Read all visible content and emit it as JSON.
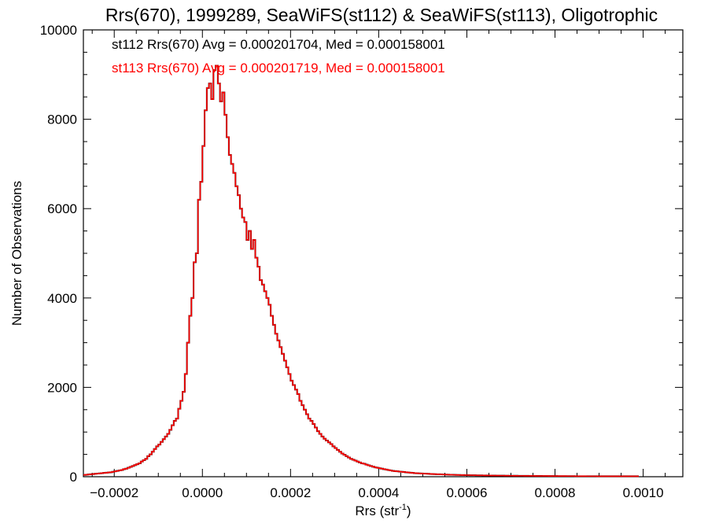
{
  "chart_data": {
    "type": "histogram-step",
    "title": "Rrs(670), 1999289, SeaWiFS(st112) & SeaWiFS(st113), Oligotrophic",
    "xlabel": {
      "base": "Rrs (str",
      "sup": "-1",
      "end": ")"
    },
    "ylabel": "Number of Observations",
    "xlim": [
      -0.00027,
      0.00109
    ],
    "ylim": [
      0,
      10000
    ],
    "xticks": [
      {
        "v": -0.0002,
        "label": "-0.0002"
      },
      {
        "v": 0.0,
        "label": "0.0000"
      },
      {
        "v": 0.0002,
        "label": "0.0002"
      },
      {
        "v": 0.0004,
        "label": "0.0004"
      },
      {
        "v": 0.0006,
        "label": "0.0006"
      },
      {
        "v": 0.0008,
        "label": "0.0008"
      },
      {
        "v": 0.001,
        "label": "0.0010"
      }
    ],
    "yticks": [
      {
        "v": 0,
        "label": "0"
      },
      {
        "v": 2000,
        "label": "2000"
      },
      {
        "v": 4000,
        "label": "4000"
      },
      {
        "v": 6000,
        "label": "6000"
      },
      {
        "v": 8000,
        "label": "8000"
      },
      {
        "v": 10000,
        "label": "10000"
      }
    ],
    "annotations": [
      {
        "text": "st112 Rrs(670) Avg = 0.000201704, Med = 0.000158001",
        "color": "#000000"
      },
      {
        "text": "st113 Rrs(670) Avg = 0.000201719, Med = 0.000158001",
        "color": "#ff0000"
      }
    ],
    "bins": {
      "start": -0.00027,
      "width": 5e-06,
      "counts": [
        40,
        45,
        50,
        55,
        60,
        65,
        70,
        75,
        80,
        85,
        90,
        95,
        100,
        110,
        120,
        130,
        140,
        150,
        170,
        180,
        200,
        220,
        240,
        260,
        280,
        300,
        340,
        370,
        400,
        460,
        500,
        560,
        620,
        680,
        720,
        780,
        840,
        900,
        960,
        1050,
        1150,
        1250,
        1300,
        1520,
        1700,
        1900,
        2300,
        3000,
        3600,
        4000,
        4800,
        5000,
        6200,
        6600,
        7400,
        8200,
        8700,
        8800,
        8450,
        9100,
        9200,
        8800,
        8400,
        8600,
        8100,
        7600,
        7200,
        7000,
        6800,
        6500,
        6300,
        6000,
        5800,
        5700,
        5300,
        5500,
        5100,
        5300,
        4900,
        4700,
        4400,
        4300,
        4150,
        4000,
        3850,
        3600,
        3400,
        3200,
        3050,
        2900,
        2750,
        2600,
        2450,
        2300,
        2150,
        2050,
        1950,
        1850,
        1700,
        1600,
        1500,
        1400,
        1300,
        1250,
        1180,
        1100,
        1020,
        960,
        900,
        850,
        810,
        770,
        730,
        680,
        640,
        600,
        560,
        520,
        490,
        460,
        430,
        400,
        380,
        360,
        340,
        320,
        300,
        290,
        270,
        255,
        240,
        225,
        210,
        200,
        190,
        180,
        170,
        160,
        150,
        140,
        130,
        125,
        120,
        115,
        110,
        105,
        100,
        95,
        90,
        85,
        80,
        78,
        75,
        72,
        70,
        68,
        65,
        62,
        60,
        58,
        56,
        54,
        52,
        50,
        48,
        46,
        45,
        44,
        42,
        40,
        39,
        38,
        37,
        36,
        35,
        34,
        33,
        32,
        31,
        30,
        30,
        29,
        28,
        28,
        27,
        26,
        26,
        25,
        25,
        24,
        24,
        23,
        23,
        22,
        22,
        21,
        21,
        20,
        20,
        20,
        19,
        19,
        18,
        18,
        18,
        17,
        17,
        17,
        16,
        16,
        16,
        15,
        15,
        15,
        15,
        14,
        14,
        14,
        14,
        13,
        13,
        13,
        13,
        12,
        12,
        12,
        12,
        12,
        11,
        11,
        11,
        11,
        11,
        10,
        10,
        10,
        10,
        10,
        10,
        10,
        10,
        10,
        10,
        10,
        10,
        10,
        10,
        10,
        10,
        10,
        10,
        10
      ]
    },
    "series": [
      {
        "name": "st112",
        "color": "#000000"
      },
      {
        "name": "st113",
        "color": "#ff0000"
      }
    ]
  }
}
